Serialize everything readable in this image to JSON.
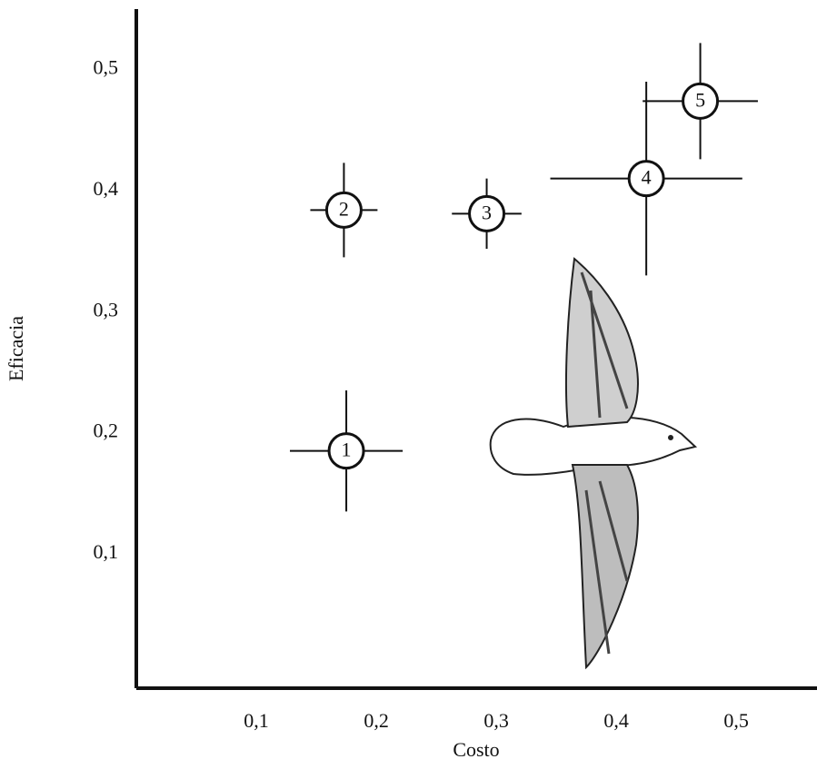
{
  "chart_data": {
    "type": "scatter",
    "x_label": "Costo",
    "y_label": "Eficacia",
    "xlim": [
      0,
      0.565
    ],
    "ylim": [
      -0.011,
      0.55
    ],
    "xticks": [
      {
        "value": 0.1,
        "label": "0,1"
      },
      {
        "value": 0.2,
        "label": "0,2"
      },
      {
        "value": 0.3,
        "label": "0,3"
      },
      {
        "value": 0.4,
        "label": "0,4"
      },
      {
        "value": 0.5,
        "label": "0,5"
      }
    ],
    "yticks": [
      {
        "value": 0.1,
        "label": "0,1"
      },
      {
        "value": 0.2,
        "label": "0,2"
      },
      {
        "value": 0.3,
        "label": "0,3"
      },
      {
        "value": 0.4,
        "label": "0,4"
      },
      {
        "value": 0.5,
        "label": "0,5"
      }
    ],
    "labels": [
      "1",
      "2",
      "3",
      "4",
      "5"
    ],
    "x": [
      0.175,
      0.173,
      0.292,
      0.425,
      0.47
    ],
    "values": [
      0.185,
      0.384,
      0.381,
      0.41,
      0.474
    ],
    "xerr": [
      0.047,
      0.028,
      0.029,
      0.08,
      0.048
    ],
    "yerr": [
      0.05,
      0.039,
      0.029,
      0.08,
      0.048
    ],
    "color": "#111111"
  }
}
